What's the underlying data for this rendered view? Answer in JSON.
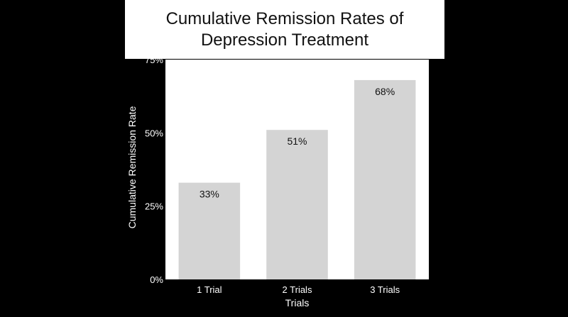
{
  "chart_data": {
    "type": "bar",
    "title": "Cumulative Remission Rates of Depression Treatment",
    "title_lines": [
      "Cumulative Remission Rates of",
      "Depression Treatment"
    ],
    "categories": [
      "1 Trial",
      "2 Trials",
      "3 Trials"
    ],
    "values": [
      33,
      51,
      68
    ],
    "value_labels": [
      "33%",
      "51%",
      "68%"
    ],
    "xlabel": "Trials",
    "ylabel": "Cumulative Remission Rate",
    "ylim": [
      0,
      75
    ],
    "yticks": [
      0,
      25,
      50,
      75
    ],
    "ytick_labels": [
      "0%",
      "25%",
      "50%",
      "75%"
    ],
    "grid": false,
    "legend": "none",
    "colors": {
      "background": "#000000",
      "plot_area": "#ffffff",
      "bar": "#d4d4d4",
      "text_dark": "#111111",
      "text_light": "#ffffff"
    }
  }
}
